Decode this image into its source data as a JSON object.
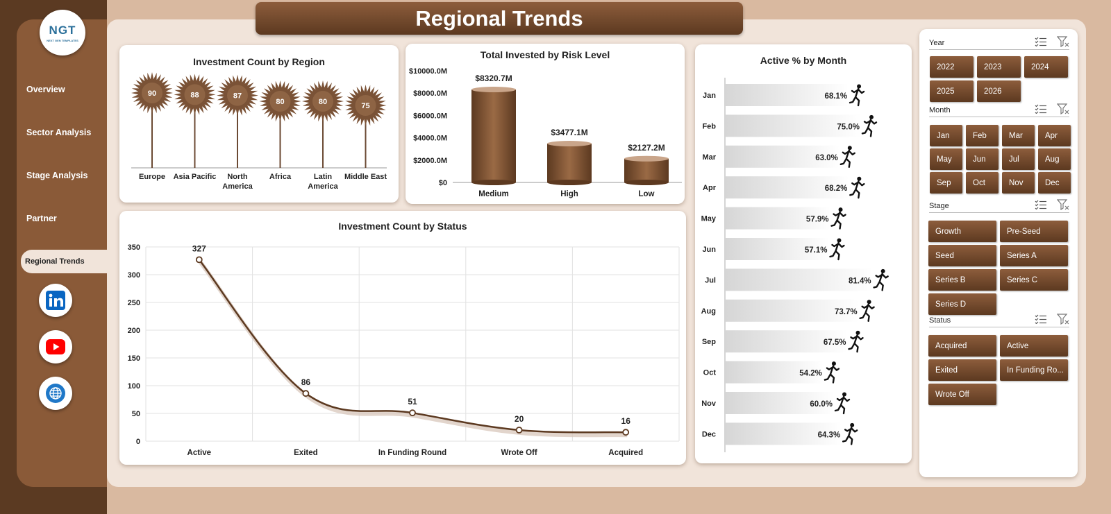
{
  "page_title": "Regional Trends",
  "logo": {
    "text": "NGT",
    "subtext": "NEXT GEN TEMPLATES"
  },
  "nav": [
    "Overview",
    "Sector Analysis",
    "Stage Analysis",
    "Partner",
    "Regional Trends"
  ],
  "social": [
    "linkedin-icon",
    "youtube-icon",
    "globe-icon"
  ],
  "colors": {
    "brown_dark": "#5c3920",
    "brown_mid": "#8a5a38",
    "beige": "#f1e4da",
    "tan": "#d9b9a0"
  },
  "region_chart": {
    "title": "Investment Count  by Region",
    "type": "bar",
    "categories": [
      "Europe",
      "Asia Pacific",
      "North America",
      "Africa",
      "Latin America",
      "Middle East"
    ],
    "label_lines": [
      [
        "Europe"
      ],
      [
        "Asia Pacific"
      ],
      [
        "North",
        "America"
      ],
      [
        "Africa"
      ],
      [
        "Latin",
        "America"
      ],
      [
        "Middle East"
      ]
    ],
    "values": [
      90,
      88,
      87,
      80,
      80,
      75
    ]
  },
  "risk_chart": {
    "title": "Total Invested by Risk Level",
    "type": "bar",
    "categories": [
      "Medium",
      "High",
      "Low"
    ],
    "values": [
      8320.7,
      3477.1,
      2127.2
    ],
    "data_labels": [
      "$8320.7M",
      "$3477.1M",
      "$2127.2M"
    ],
    "ylim": [
      0,
      10000
    ],
    "yticks": [
      0,
      2000,
      4000,
      6000,
      8000,
      10000
    ],
    "ytick_labels": [
      "$0",
      "$2000.0M",
      "$4000.0M",
      "$6000.0M",
      "$8000.0M",
      "$10000.0M"
    ]
  },
  "status_chart": {
    "title": "Investment Count  by Status",
    "type": "line",
    "categories": [
      "Active",
      "Exited",
      "In Funding Round",
      "Wrote Off",
      "Acquired"
    ],
    "values": [
      327,
      86,
      51,
      20,
      16
    ],
    "ylim": [
      0,
      350
    ],
    "yticks": [
      0,
      50,
      100,
      150,
      200,
      250,
      300,
      350
    ]
  },
  "month_chart": {
    "title": "Active % by Month",
    "type": "bar",
    "categories": [
      "Jan",
      "Feb",
      "Mar",
      "Apr",
      "May",
      "Jun",
      "Jul",
      "Aug",
      "Sep",
      "Oct",
      "Nov",
      "Dec"
    ],
    "values": [
      68.1,
      75.0,
      63.0,
      68.2,
      57.9,
      57.1,
      81.4,
      73.7,
      67.5,
      54.2,
      60.0,
      64.3
    ],
    "data_labels": [
      "68.1%",
      "75.0%",
      "63.0%",
      "68.2%",
      "57.9%",
      "57.1%",
      "81.4%",
      "73.7%",
      "67.5%",
      "54.2%",
      "60.0%",
      "64.3%"
    ]
  },
  "slicers": {
    "year": {
      "title": "Year",
      "items": [
        "2022",
        "2023",
        "2024",
        "2025",
        "2026"
      ]
    },
    "month": {
      "title": "Month",
      "items": [
        "Jan",
        "Feb",
        "Mar",
        "Apr",
        "May",
        "Jun",
        "Jul",
        "Aug",
        "Sep",
        "Oct",
        "Nov",
        "Dec"
      ]
    },
    "stage": {
      "title": "Stage",
      "items": [
        "Growth",
        "Pre-Seed",
        "Seed",
        "Series A",
        "Series B",
        "Series C",
        "Series D"
      ]
    },
    "status": {
      "title": "Status",
      "items": [
        "Acquired",
        "Active",
        "Exited",
        "In Funding Ro...",
        "Wrote Off"
      ]
    }
  }
}
